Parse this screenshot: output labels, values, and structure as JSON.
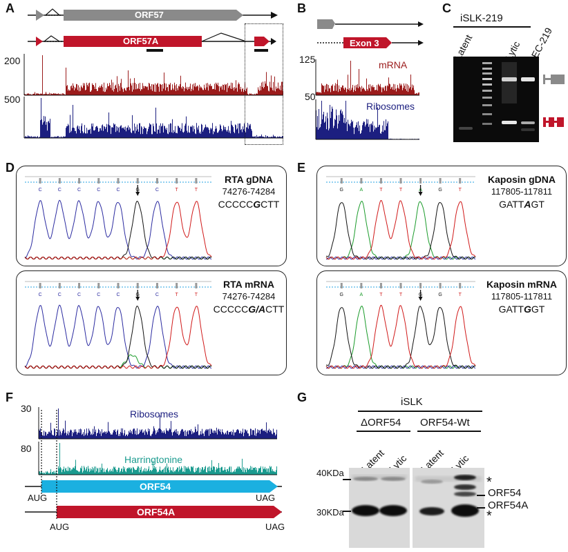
{
  "colors": {
    "gray": "#8a8a8a",
    "red": "#c0152a",
    "mrna": "#9b1b1b",
    "ribo": "#1c1f80",
    "harr": "#1b9b8f",
    "orf54": "#1bb0e0",
    "chrom_blue": "#2a2aa0",
    "chrom_red": "#d01818",
    "chrom_green": "#1a9b2a",
    "chrom_black": "#111111"
  },
  "panelA": {
    "label": "A",
    "orf57": "ORF57",
    "orf57a": "ORF57A",
    "y1": "200",
    "y2": "500"
  },
  "panelB": {
    "label": "B",
    "exon3": "Exon 3",
    "y1": "125",
    "y2": "50",
    "mrna": "mRNA",
    "ribosomes": "Ribosomes"
  },
  "panelC": {
    "label": "C",
    "cell_line": "iSLK-219",
    "lanes": [
      "Latent",
      "Lytic",
      "LEC-219"
    ]
  },
  "panelD": {
    "label": "D",
    "top": {
      "title": "RTA gDNA",
      "coords": "74276-74284",
      "seq_pre": "CCCCC",
      "seq_mut": "G",
      "seq_post": "CTT",
      "bases": [
        "C",
        "C",
        "C",
        "C",
        "C",
        "G",
        "C",
        "T",
        "T"
      ]
    },
    "bottom": {
      "title": "RTA mRNA",
      "coords": "74276-74284",
      "seq_pre": "CCCCC",
      "seq_mut": "G/A",
      "seq_post": "CTT",
      "bases": [
        "C",
        "C",
        "C",
        "C",
        "C",
        "G",
        "C",
        "T",
        "T"
      ]
    }
  },
  "panelE": {
    "label": "E",
    "top": {
      "title": "Kaposin gDNA",
      "coords": "117805-117811",
      "seq_pre": "GATT",
      "seq_mut": "A",
      "seq_post": "GT",
      "bases": [
        "G",
        "A",
        "T",
        "T",
        "A",
        "G",
        "T"
      ]
    },
    "bottom": {
      "title": "Kaposin mRNA",
      "coords": "117805-117811",
      "seq_pre": "GATT",
      "seq_mut": "G",
      "seq_post": "GT",
      "bases": [
        "G",
        "A",
        "T",
        "T",
        "G",
        "G",
        "T"
      ]
    }
  },
  "panelF": {
    "label": "F",
    "y1": "30",
    "y2": "80",
    "ribosomes": "Ribosomes",
    "harringtonine": "Harringtonine",
    "orf54": "ORF54",
    "orf54a": "ORF54A",
    "aug": "AUG",
    "uag": "UAG"
  },
  "panelG": {
    "label": "G",
    "cell_line": "iSLK",
    "group1": "ΔORF54",
    "group2": "ORF54-Wt",
    "lanes": [
      "Latent",
      "Lytic",
      "Latent",
      "Lytic"
    ],
    "mw_top": "40KDa",
    "mw_bottom": "30KDa",
    "band1": "ORF54",
    "band2": "ORF54A",
    "star": "*"
  }
}
